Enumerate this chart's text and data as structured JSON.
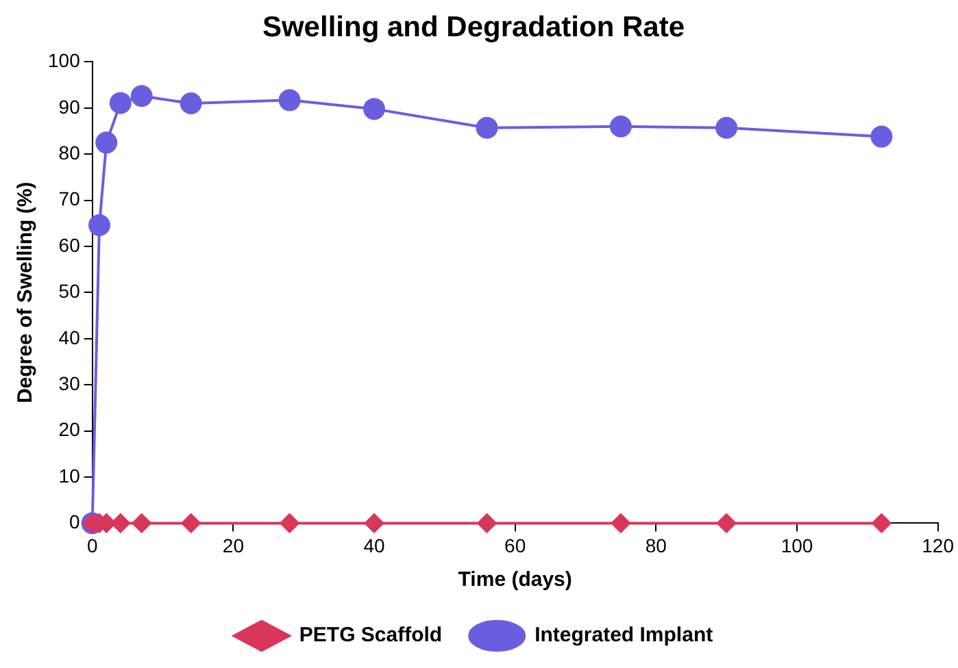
{
  "chart_data": {
    "type": "line",
    "title": "Swelling and Degradation Rate",
    "xlabel": "Time (days)",
    "ylabel": "Degree of Swelling (%)",
    "x": [
      0,
      1,
      2,
      4,
      7,
      14,
      28,
      40,
      56,
      75,
      90,
      112
    ],
    "series": [
      {
        "name": "PETG Scaffold",
        "color": "#d9365a",
        "marker": "diamond",
        "values": [
          0,
          0,
          0,
          0,
          0,
          0,
          0,
          0,
          0,
          0,
          0,
          0
        ]
      },
      {
        "name": "Integrated Implant",
        "color": "#6a5ee0",
        "marker": "circle",
        "values": [
          0,
          64.6,
          82.5,
          91.1,
          92.6,
          91,
          91.7,
          89.8,
          85.7,
          86,
          85.7,
          83.8
        ]
      }
    ],
    "xlim": [
      0,
      120
    ],
    "xticks": [
      0,
      20,
      40,
      60,
      80,
      100,
      120
    ],
    "ylim": [
      0,
      100
    ],
    "yticks": [
      0,
      10,
      20,
      30,
      40,
      50,
      60,
      70,
      80,
      90,
      100
    ],
    "grid": false,
    "legend": "bottom"
  }
}
